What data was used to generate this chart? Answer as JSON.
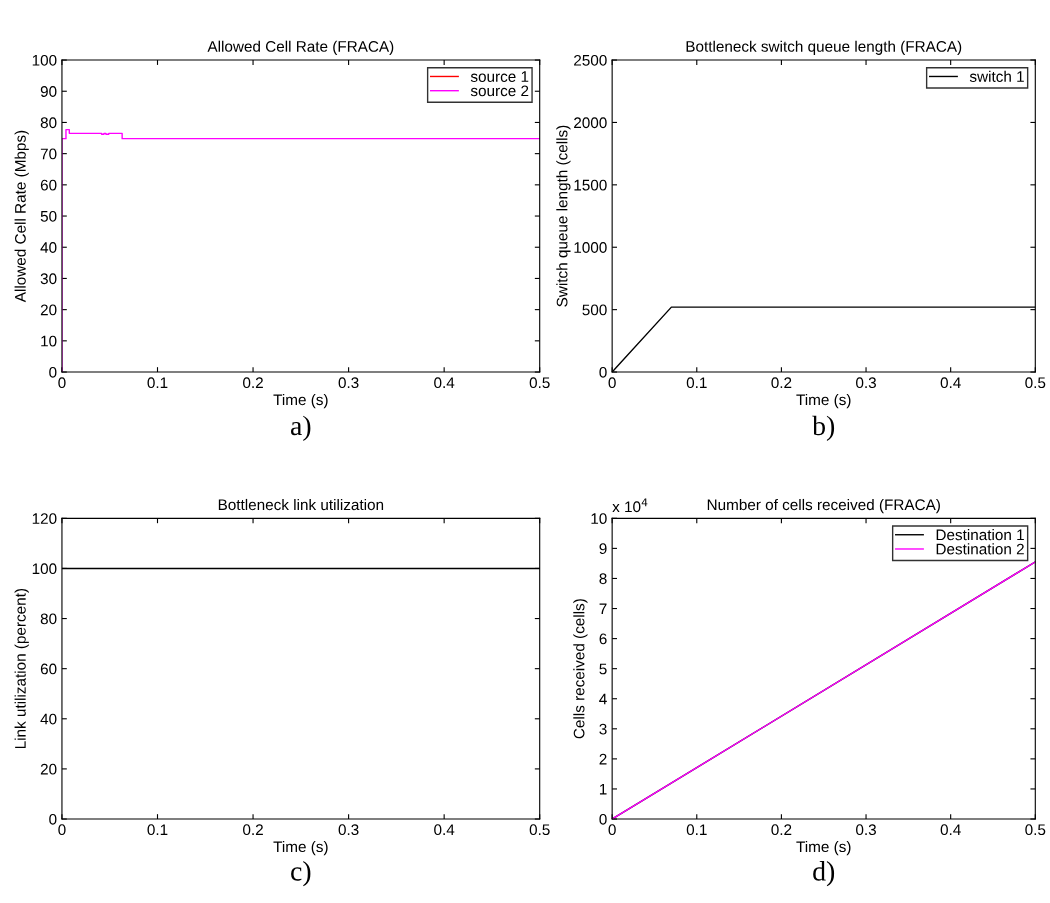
{
  "chart_data": [
    {
      "type": "line",
      "title": "Allowed Cell Rate (FRACA)",
      "xlabel": "Time (s)",
      "ylabel": "Allowed Cell Rate (Mbps)",
      "xlim": [
        0,
        0.5
      ],
      "xticks": [
        0,
        0.1,
        0.2,
        0.3,
        0.4,
        0.5
      ],
      "ylim": [
        0,
        100
      ],
      "yticks": [
        0,
        10,
        20,
        30,
        40,
        50,
        60,
        70,
        80,
        90,
        100
      ],
      "legend": "top right",
      "grid": false,
      "annotations": [
        "a)"
      ],
      "series": [
        {
          "name": "source 1",
          "color": "#ff0000",
          "values": [
            null
          ]
        },
        {
          "name": "source 2",
          "color": "#ff00ff",
          "x": [
            0,
            0,
            0.0042,
            0.0042,
            0.0077,
            0.0077,
            0.0415,
            0.0415,
            0.044,
            0.044,
            0.046,
            0.046,
            0.049,
            0.049,
            0.063,
            0.063,
            0.5
          ],
          "values": [
            0,
            74.8,
            74.8,
            77.7,
            77.7,
            76.5,
            76.5,
            76.2,
            76.2,
            76.5,
            76.5,
            76.2,
            76.2,
            76.5,
            76.5,
            74.8,
            74.8
          ]
        }
      ]
    },
    {
      "type": "line",
      "title": "Bottleneck switch queue length (FRACA)",
      "xlabel": "Time (s)",
      "ylabel": "Switch queue length (cells)",
      "xlim": [
        0,
        0.5
      ],
      "xticks": [
        0,
        0.1,
        0.2,
        0.3,
        0.4,
        0.5
      ],
      "ylim": [
        0,
        2500
      ],
      "yticks": [
        0,
        500,
        1000,
        1500,
        2000,
        2500
      ],
      "legend": "top right",
      "grid": false,
      "annotations": [
        "b)"
      ],
      "series": [
        {
          "name": "switch 1",
          "color": "#000000",
          "x": [
            0,
            0.004,
            0.07,
            0.5
          ],
          "values": [
            0,
            30,
            520,
            520
          ]
        }
      ]
    },
    {
      "type": "line",
      "title": "Bottleneck link utilization",
      "xlabel": "Time (s)",
      "ylabel": "Link utilization (percent)",
      "xlim": [
        0,
        0.5
      ],
      "xticks": [
        0,
        0.1,
        0.2,
        0.3,
        0.4,
        0.5
      ],
      "ylim": [
        0,
        120
      ],
      "yticks": [
        0,
        20,
        40,
        60,
        80,
        100,
        120
      ],
      "grid": false,
      "annotations": [
        "c)"
      ],
      "series": [
        {
          "color": "#000000",
          "x": [
            0,
            0.5
          ],
          "values": [
            100,
            100
          ]
        }
      ]
    },
    {
      "type": "line",
      "title": "Number of cells received (FRACA)",
      "xlabel": "Time (s)",
      "ylabel": "Cells received (cells)",
      "xlim": [
        0,
        0.5
      ],
      "xticks": [
        0,
        0.1,
        0.2,
        0.3,
        0.4,
        0.5
      ],
      "ylim": [
        0,
        10
      ],
      "yticks": [
        0,
        1,
        2,
        3,
        4,
        5,
        6,
        7,
        8,
        9,
        10
      ],
      "legend": "top right",
      "grid": false,
      "annotations": [
        "x 10$^{4}$",
        "d)"
      ],
      "series": [
        {
          "name": "Destination 1",
          "color": "#000000",
          "x": [
            0,
            0.5
          ],
          "values": [
            0,
            8.55
          ]
        },
        {
          "name": "Destination 2",
          "color": "#ff00ff",
          "x": [
            0,
            0.5
          ],
          "values": [
            0,
            8.55
          ]
        }
      ]
    }
  ]
}
